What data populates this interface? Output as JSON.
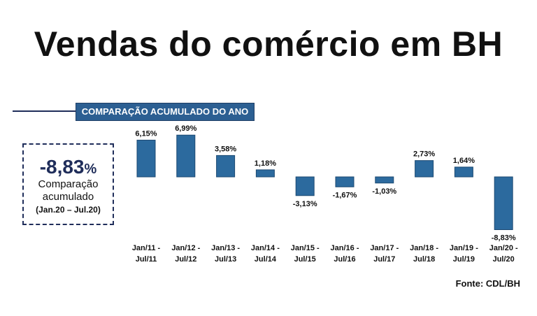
{
  "title": "Vendas do comércio em BH",
  "banner": "COMPARAÇÃO ACUMULADO DO ANO",
  "summary": {
    "value": "-8,83",
    "unit": "%",
    "label_line1": "Comparação",
    "label_line2": "acumulado",
    "range": "(Jan.20 – Jul.20)"
  },
  "source": "Fonte: CDL/BH",
  "colors": {
    "bar": "#2c6a9e",
    "accent": "#1f2d5a"
  },
  "chart_data": {
    "type": "bar",
    "title": "COMPARAÇÃO ACUMULADO DO ANO",
    "categories": [
      [
        "Jan/11 -",
        "Jul/11"
      ],
      [
        "Jan/12 -",
        "Jul/12"
      ],
      [
        "Jan/13 -",
        "Jul/13"
      ],
      [
        "Jan/14 -",
        "Jul/14"
      ],
      [
        "Jan/15 -",
        "Jul/15"
      ],
      [
        "Jan/16 -",
        "Jul/16"
      ],
      [
        "Jan/17 -",
        "Jul/17"
      ],
      [
        "Jan/18 -",
        "Jul/18"
      ],
      [
        "Jan/19 -",
        "Jul/19"
      ],
      [
        "Jan/20 -",
        "Jul/20"
      ]
    ],
    "values": [
      6.15,
      6.99,
      3.58,
      1.18,
      -3.13,
      -1.67,
      -1.03,
      2.73,
      1.64,
      -8.83
    ],
    "labels": [
      "6,15%",
      "6,99%",
      "3,58%",
      "1,18%",
      "-3,13%",
      "-1,67%",
      "-1,03%",
      "2,73%",
      "1,64%",
      "-8,83%"
    ],
    "ylim": [
      -8.83,
      6.99
    ],
    "grid": false,
    "legend": "none"
  }
}
